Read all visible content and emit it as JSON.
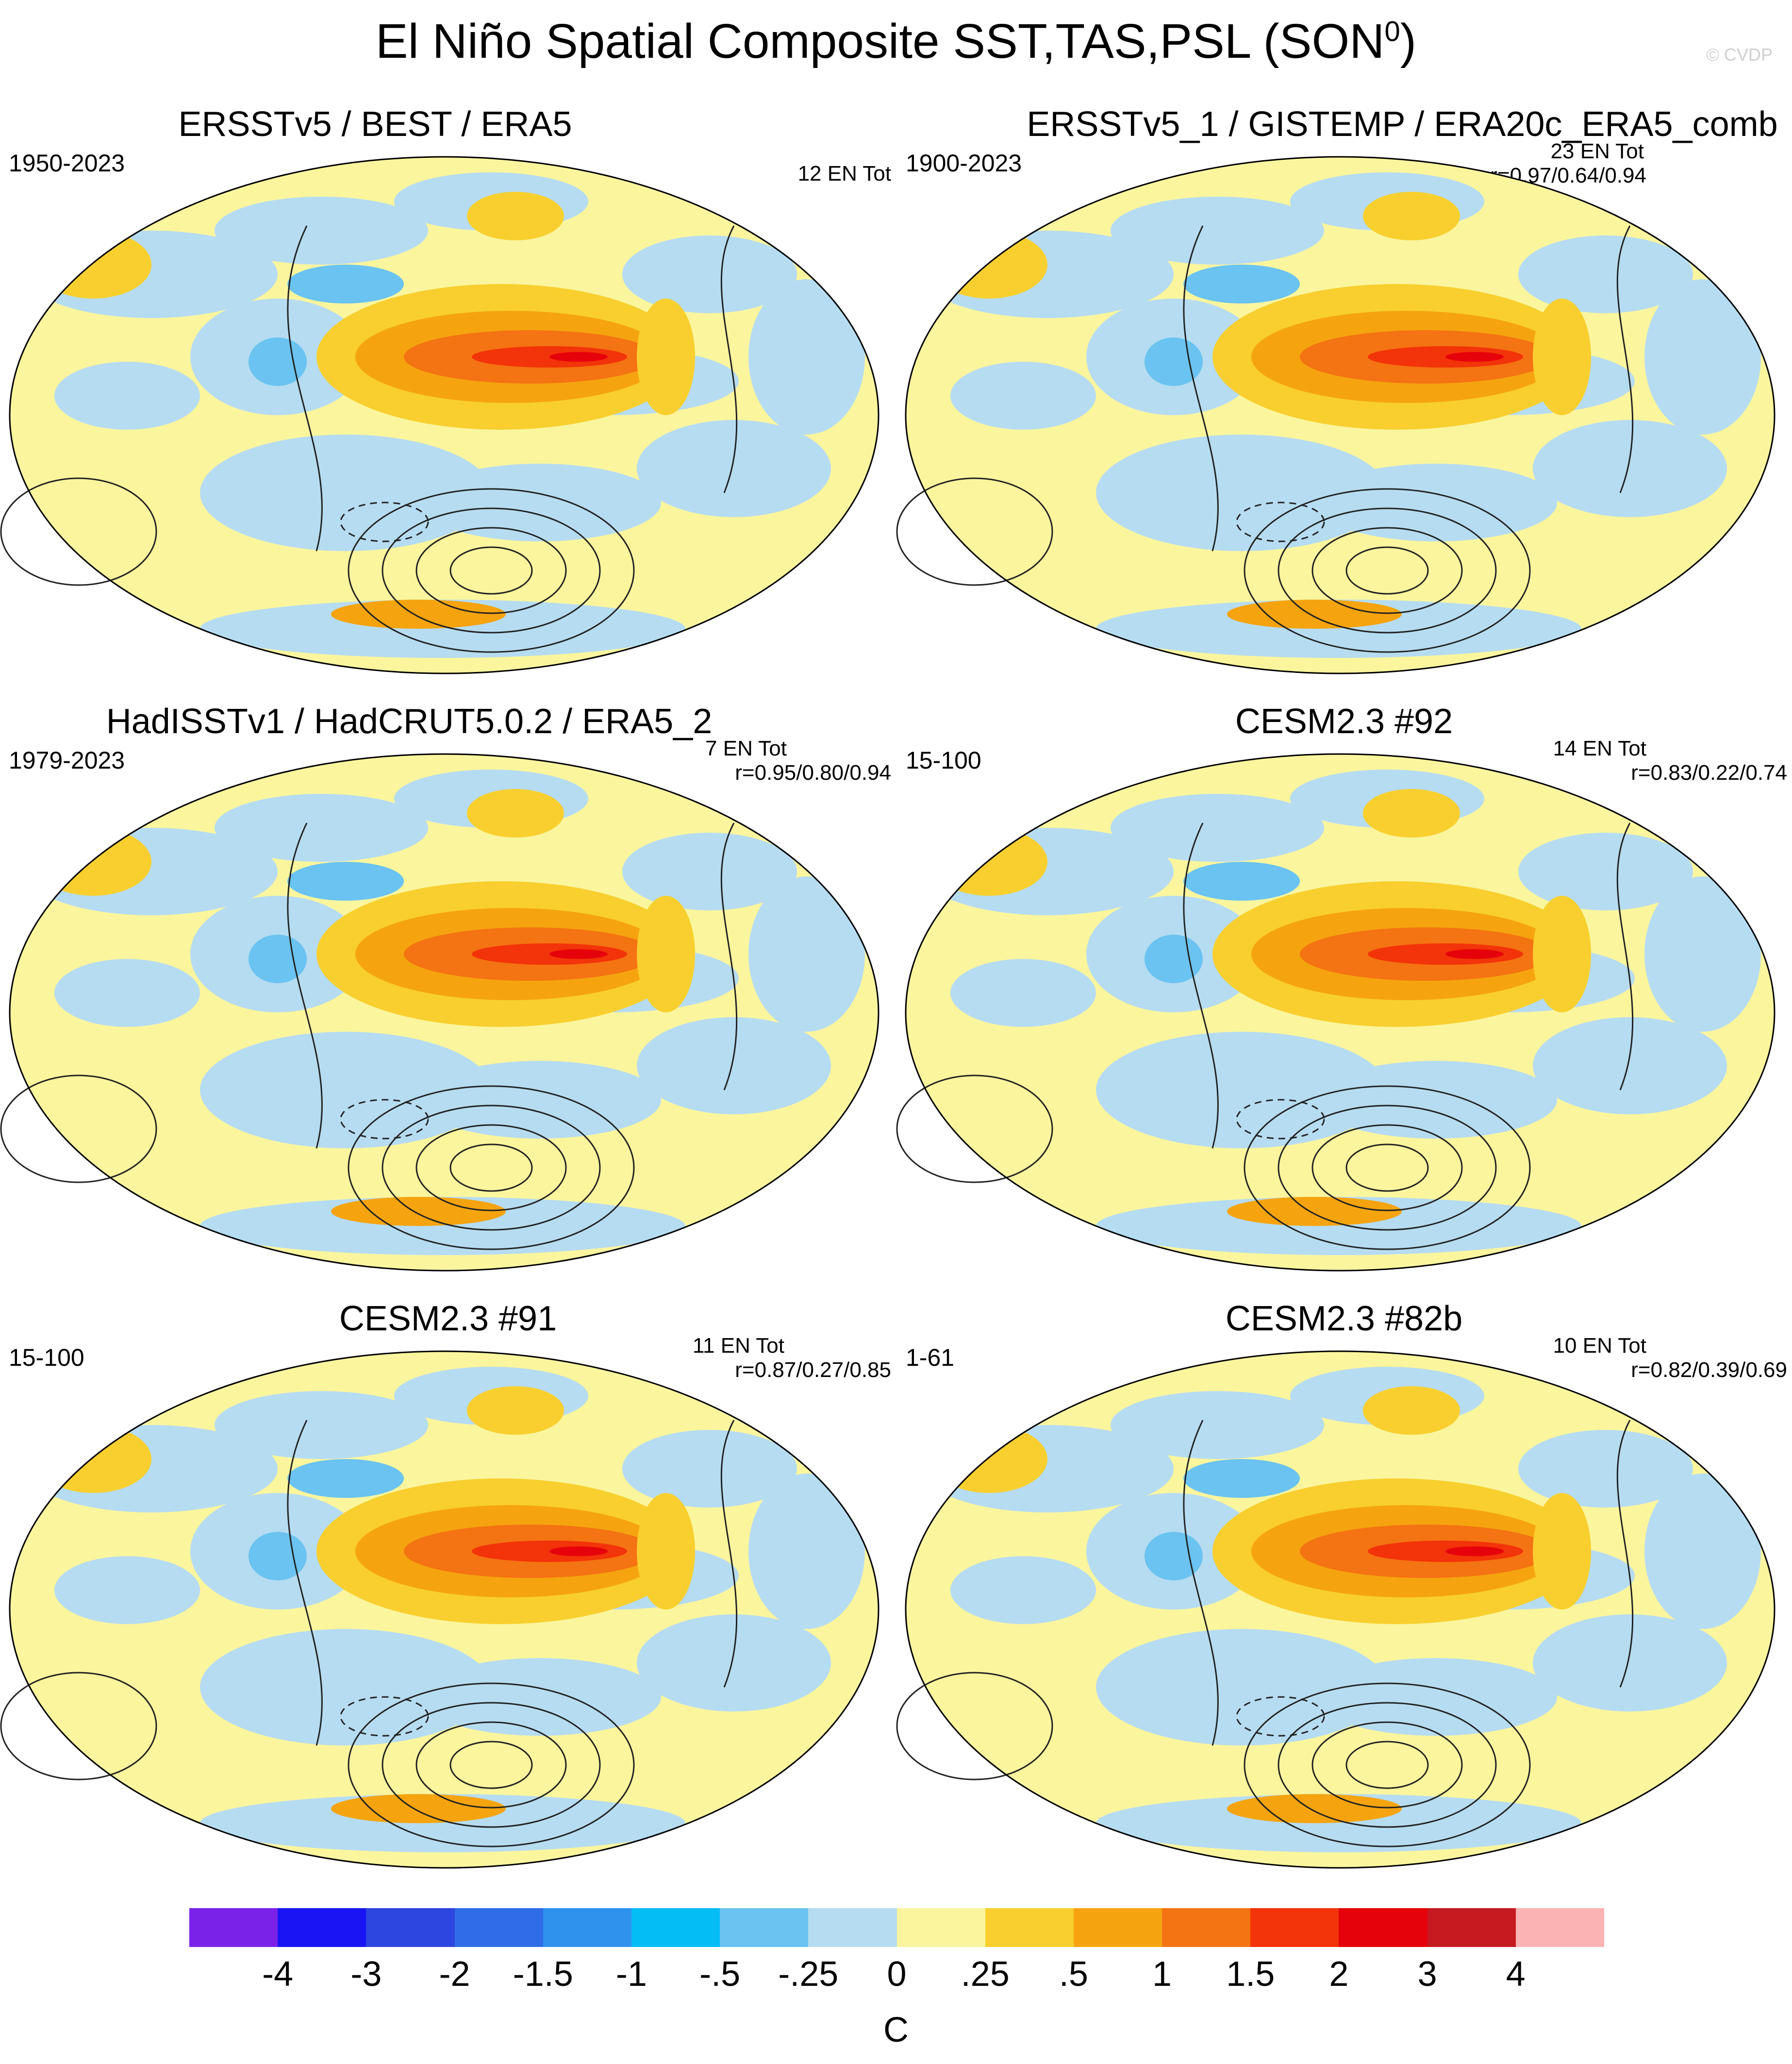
{
  "title": {
    "main": "El Niño Spatial Composite SST,TAS,PSL (SON",
    "sup": "0",
    "close": ")"
  },
  "watermark": "© CVDP",
  "panels": [
    {
      "title": "ERSSTv5 / BEST / ERA5",
      "years": "1950-2023",
      "count": "12 EN Tot",
      "corr": ""
    },
    {
      "title": "ERSSTv5_1 / GISTEMP / ERA20c_ERA5_comb",
      "years": "1900-2023",
      "count": "23 EN Tot",
      "corr": "r=0.97/0.64/0.94"
    },
    {
      "title": "HadISSTv1 / HadCRUT5.0.2 / ERA5_2",
      "years": "1979-2023",
      "count": "7 EN Tot",
      "corr": "r=0.95/0.80/0.94"
    },
    {
      "title": "CESM2.3 #92",
      "years": "15-100",
      "count": "14 EN Tot",
      "corr": "r=0.83/0.22/0.74"
    },
    {
      "title": "CESM2.3 #91",
      "years": "15-100",
      "count": "11 EN Tot",
      "corr": "r=0.87/0.27/0.85"
    },
    {
      "title": "CESM2.3 #82b",
      "years": "1-61",
      "count": "10 EN Tot",
      "corr": "r=0.82/0.39/0.69"
    }
  ],
  "chart_data": {
    "type": "heatmap",
    "projection": "global map (Robinson-like ellipse), Pacific-centered",
    "fields": [
      "SST",
      "TAS",
      "PSL contours"
    ],
    "colorbar": {
      "units": "C",
      "tick_labels": [
        "-4",
        "-3",
        "-2",
        "-1.5",
        "-1",
        "-.5",
        "-.25",
        "0",
        ".25",
        ".5",
        "1",
        "1.5",
        "2",
        "3",
        "4"
      ],
      "colors": [
        "#7a22e8",
        "#1a14f5",
        "#2e46e0",
        "#2f6de8",
        "#2f93ee",
        "#05bdf5",
        "#6ac3f0",
        "#b6dcf1",
        "#fbf59e",
        "#f8cf2e",
        "#f5a40f",
        "#f47312",
        "#f33309",
        "#e6020a",
        "#c51a20",
        "#fcb3b4"
      ]
    },
    "composite_pattern": "warm (orange/red, up to ~2-3 C) tongue along the equatorial eastern Pacific; weaker cool anomalies (light blue) in the western Pacific horseshoe and North Pacific; PSL low-pressure contour centres over the South Pacific near Antarctica"
  }
}
